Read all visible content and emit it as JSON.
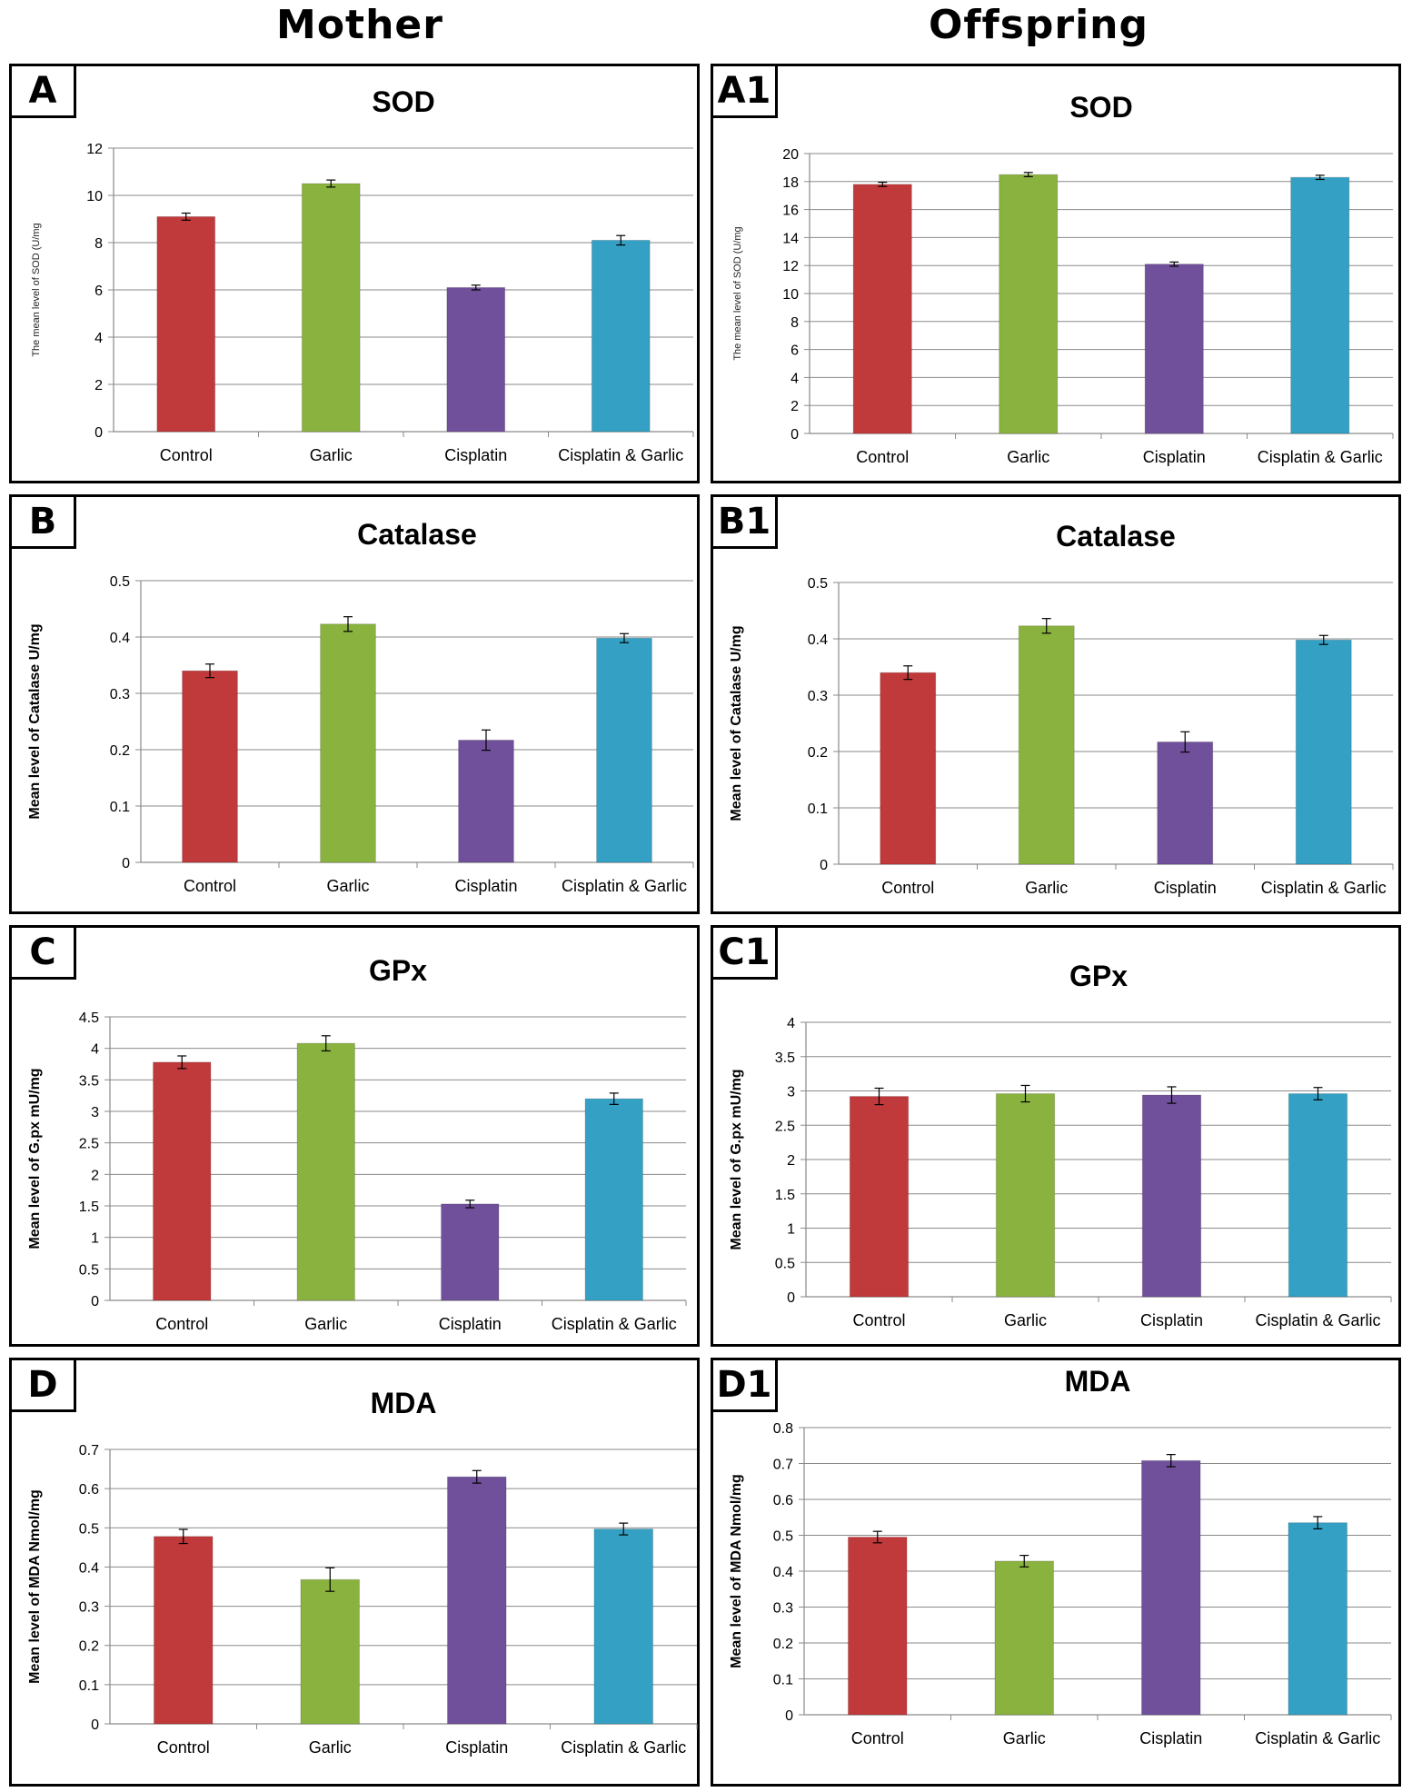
{
  "headers": {
    "left": "Mother",
    "right": "Offspring"
  },
  "colors": {
    "Control": "#c0393b",
    "Garlic": "#8ab23f",
    "Cisplatin": "#71509b",
    "Cisplatin & Garlic": "#34a0c4"
  },
  "chart_data": [
    {
      "id": "A",
      "type": "bar",
      "title": "SOD",
      "ylabel": "The mean level of SOD (U/mg",
      "ylim": [
        0,
        12
      ],
      "yticks": [
        0,
        2,
        4,
        6,
        8,
        10,
        12
      ],
      "categories": [
        "Control",
        "Garlic",
        "Cisplatin",
        "Cisplatin & Garlic"
      ],
      "values": [
        9.1,
        10.5,
        6.1,
        8.1
      ],
      "errors": [
        0.15,
        0.15,
        0.1,
        0.2
      ],
      "grid": true
    },
    {
      "id": "A1",
      "type": "bar",
      "title": "SOD",
      "ylabel": "The mean level of SOD (U/mg",
      "ylim": [
        0,
        20
      ],
      "yticks": [
        0,
        2,
        4,
        6,
        8,
        10,
        12,
        14,
        16,
        18,
        20
      ],
      "categories": [
        "Control",
        "Garlic",
        "Cisplatin",
        "Cisplatin & Garlic"
      ],
      "values": [
        17.8,
        18.5,
        12.1,
        18.3
      ],
      "errors": [
        0.15,
        0.15,
        0.15,
        0.15
      ],
      "grid": true
    },
    {
      "id": "B",
      "type": "bar",
      "title": "Catalase",
      "ylabel": "Mean level of Catalase U/mg",
      "ylim": [
        0,
        0.5
      ],
      "yticks": [
        0,
        0.1,
        0.2,
        0.3,
        0.4,
        0.5
      ],
      "categories": [
        "Control",
        "Garlic",
        "Cisplatin",
        "Cisplatin & Garlic"
      ],
      "values": [
        0.34,
        0.423,
        0.217,
        0.398
      ],
      "errors": [
        0.012,
        0.013,
        0.018,
        0.008
      ],
      "grid": true
    },
    {
      "id": "B1",
      "type": "bar",
      "title": "Catalase",
      "ylabel": "Mean level of Catalase U/mg",
      "ylim": [
        0,
        0.5
      ],
      "yticks": [
        0,
        0.1,
        0.2,
        0.3,
        0.4,
        0.5
      ],
      "categories": [
        "Control",
        "Garlic",
        "Cisplatin",
        "Cisplatin & Garlic"
      ],
      "values": [
        0.34,
        0.423,
        0.217,
        0.398
      ],
      "errors": [
        0.012,
        0.013,
        0.018,
        0.008
      ],
      "grid": true
    },
    {
      "id": "C",
      "type": "bar",
      "title": "GPx",
      "ylabel": "Mean level of G.px mU/mg",
      "ylim": [
        0,
        4.5
      ],
      "yticks": [
        0,
        0.5,
        1,
        1.5,
        2,
        2.5,
        3,
        3.5,
        4,
        4.5
      ],
      "categories": [
        "Control",
        "Garlic",
        "Cisplatin",
        "Cisplatin & Garlic"
      ],
      "values": [
        3.78,
        4.08,
        1.53,
        3.2
      ],
      "errors": [
        0.1,
        0.12,
        0.06,
        0.09
      ],
      "grid": true
    },
    {
      "id": "C1",
      "type": "bar",
      "title": "GPx",
      "ylabel": "Mean level of G.px mU/mg",
      "ylim": [
        0,
        4
      ],
      "yticks": [
        0,
        0.5,
        1,
        1.5,
        2,
        2.5,
        3,
        3.5,
        4
      ],
      "categories": [
        "Control",
        "Garlic",
        "Cisplatin",
        "Cisplatin & Garlic"
      ],
      "values": [
        2.92,
        2.96,
        2.94,
        2.96
      ],
      "errors": [
        0.12,
        0.12,
        0.12,
        0.09
      ],
      "grid": true
    },
    {
      "id": "D",
      "type": "bar",
      "title": "MDA",
      "ylabel": "Mean level of MDA Nmol/mg",
      "ylim": [
        0,
        0.7
      ],
      "yticks": [
        0,
        0.1,
        0.2,
        0.3,
        0.4,
        0.5,
        0.6,
        0.7
      ],
      "categories": [
        "Control",
        "Garlic",
        "Cisplatin",
        "Cisplatin & Garlic"
      ],
      "values": [
        0.478,
        0.368,
        0.63,
        0.497
      ],
      "errors": [
        0.018,
        0.03,
        0.016,
        0.015
      ],
      "grid": true
    },
    {
      "id": "D1",
      "type": "bar",
      "title": "MDA",
      "ylabel": "Mean level of MDA Nmol/mg",
      "ylim": [
        0,
        0.8
      ],
      "yticks": [
        0,
        0.1,
        0.2,
        0.3,
        0.4,
        0.5,
        0.6,
        0.7,
        0.8
      ],
      "categories": [
        "Control",
        "Garlic",
        "Cisplatin",
        "Cisplatin & Garlic"
      ],
      "values": [
        0.495,
        0.428,
        0.708,
        0.535
      ],
      "errors": [
        0.016,
        0.016,
        0.017,
        0.017
      ],
      "grid": true
    }
  ]
}
